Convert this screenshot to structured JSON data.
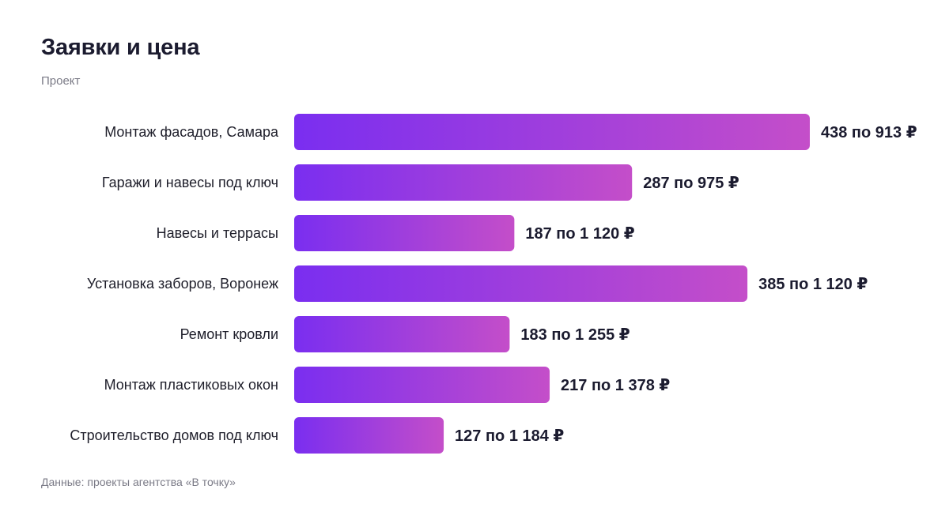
{
  "header": {
    "title": "Заявки и цена",
    "subtitle": "Проект"
  },
  "footer": {
    "source": "Данные: проекты агентства «В точку»"
  },
  "colors": {
    "bar_start": "#7a2ef0",
    "bar_end": "#c44ec9"
  },
  "chart_data": {
    "type": "bar",
    "orientation": "horizontal",
    "title": "Заявки и цена",
    "subtitle": "Проект",
    "categories": [
      "Монтаж фасадов, Самара",
      "Гаражи и навесы под ключ",
      "Навесы и террасы",
      "Установка заборов, Воронеж",
      "Ремонт кровли",
      "Монтаж пластиковых окон",
      "Строительство домов под ключ"
    ],
    "values": [
      438,
      287,
      187,
      385,
      183,
      217,
      127
    ],
    "prices": [
      "913",
      "975",
      "1 120",
      "1 120",
      "1 255",
      "1 378",
      "1 184"
    ],
    "value_labels": [
      "438 по 913 ₽",
      "287 по 975 ₽",
      "187 по 1 120 ₽",
      "385 по 1 120 ₽",
      "183 по 1 255 ₽",
      "217 по 1 378 ₽",
      "127 по 1 184 ₽"
    ],
    "xlim": [
      0,
      438
    ],
    "grid": false,
    "legend": "none"
  }
}
